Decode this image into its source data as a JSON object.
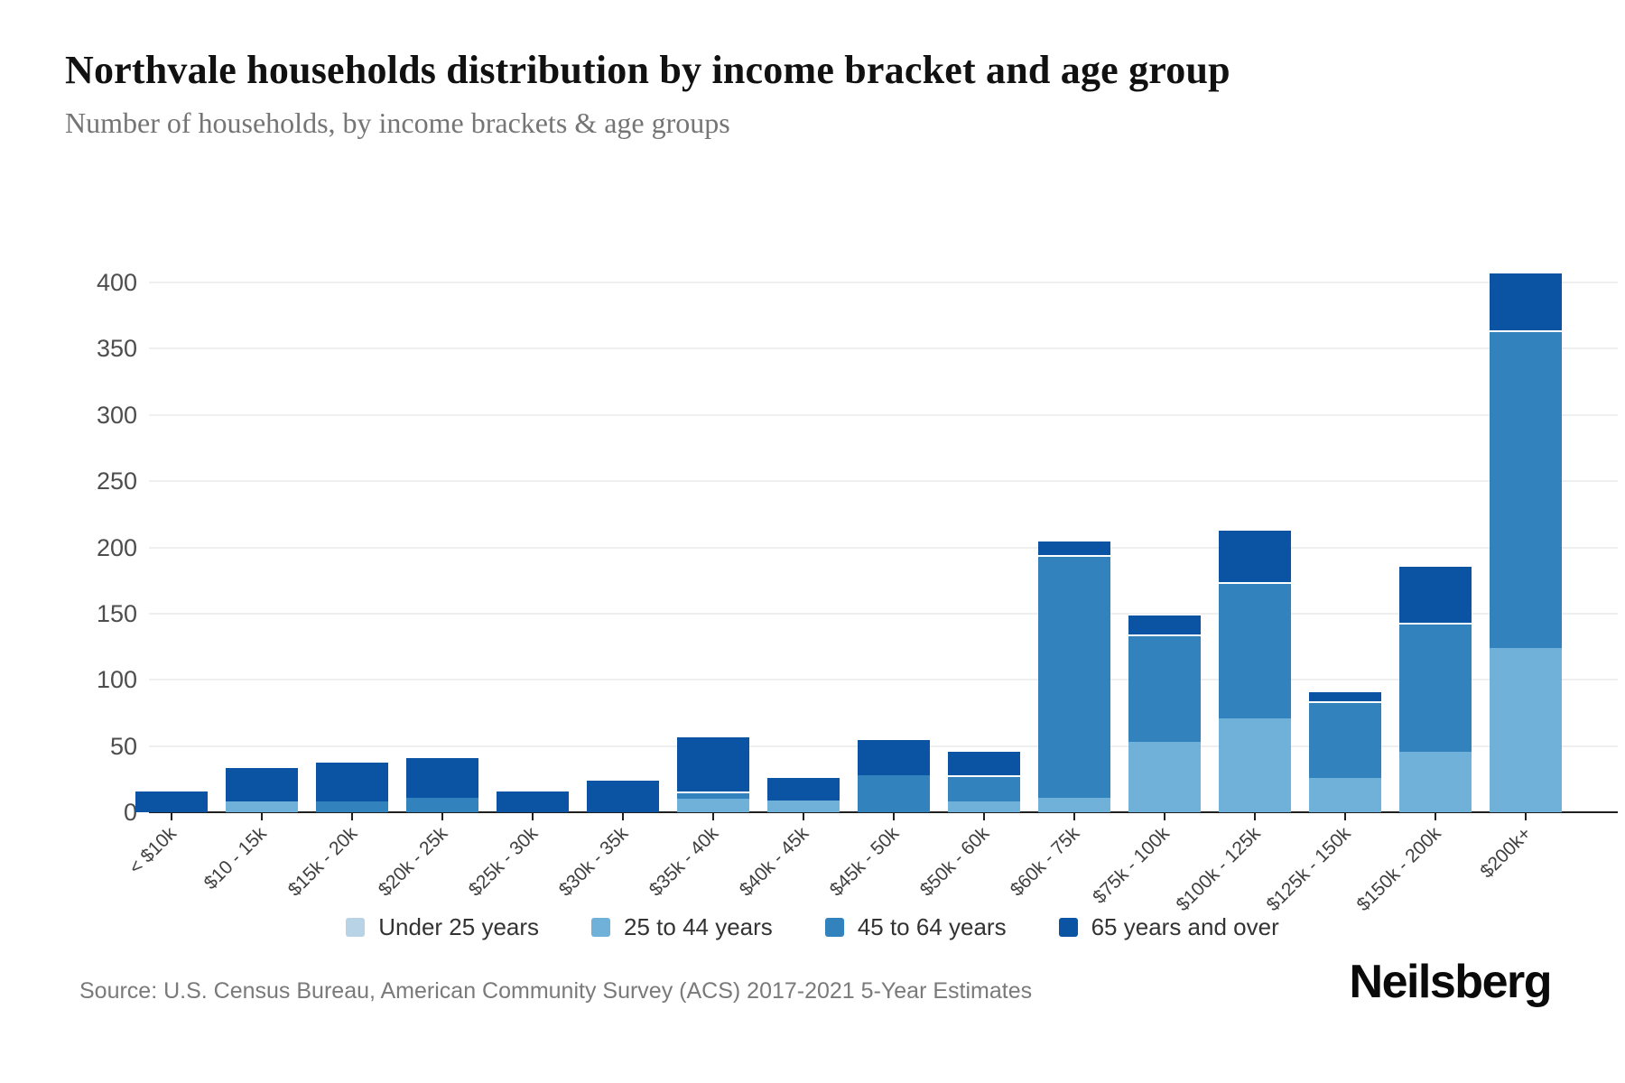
{
  "header": {
    "title": "Northvale households distribution by income bracket and age group",
    "subtitle": "Number of households, by income brackets & age groups"
  },
  "footer": {
    "source": "Source: U.S. Census Bureau, American Community Survey (ACS) 2017-2021 5-Year Estimates",
    "brand": "Neilsberg"
  },
  "colors": {
    "background": "#ffffff",
    "gridline": "#efefef",
    "axis": "#1f1f1f",
    "title_text": "#111111",
    "subtitle_text": "#757575",
    "tick_label_text": "#4d4d4d",
    "legend_text": "#333333",
    "source_text": "#7a7a7a"
  },
  "chart_data": {
    "type": "bar",
    "stacked": true,
    "title": "Northvale households distribution by income bracket and age group",
    "subtitle": "Number of households, by income brackets & age groups",
    "xlabel": "",
    "ylabel": "",
    "ylim": [
      0,
      400
    ],
    "yticks": [
      0,
      50,
      100,
      150,
      200,
      250,
      300,
      350,
      400
    ],
    "grid": true,
    "legend_position": "bottom",
    "categories": [
      "< $10k",
      "$10 - 15k",
      "$15k - 20k",
      "$20k - 25k",
      "$25k - 30k",
      "$30k - 35k",
      "$35k - 40k",
      "$40k - 45k",
      "$45k - 50k",
      "$50k - 60k",
      "$60k - 75k",
      "$75k - 100k",
      "$100k - 125k",
      "$125k - 150k",
      "$150k - 200k",
      "$200k+"
    ],
    "series": [
      {
        "name": "Under 25 years",
        "color": "#b9d3e6",
        "values": [
          0,
          0,
          0,
          0,
          0,
          0,
          0,
          0,
          0,
          0,
          0,
          0,
          0,
          0,
          0,
          0
        ]
      },
      {
        "name": "25 to 44 years",
        "color": "#6fb1d9",
        "values": [
          0,
          8,
          0,
          0,
          0,
          0,
          10,
          9,
          0,
          8,
          11,
          53,
          71,
          26,
          46,
          124
        ]
      },
      {
        "name": "45 to 64 years",
        "color": "#3182bd",
        "values": [
          0,
          0,
          8,
          11,
          0,
          0,
          6,
          0,
          28,
          20,
          183,
          81,
          103,
          58,
          97,
          240
        ]
      },
      {
        "name": "65 years and over",
        "color": "#0b54a3",
        "values": [
          16,
          27,
          31,
          31,
          16,
          24,
          42,
          18,
          28,
          19,
          12,
          16,
          40,
          8,
          44,
          44
        ]
      }
    ],
    "totals": [
      16,
      35,
      39,
      42,
      16,
      24,
      58,
      27,
      56,
      47,
      206,
      150,
      214,
      92,
      187,
      408
    ]
  }
}
